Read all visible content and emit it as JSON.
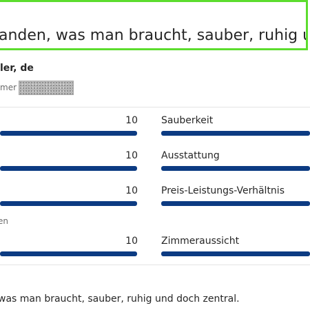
{
  "headline": "anden, was man braucht, sauber, ruhig und d",
  "reviewer": {
    "name": "ler, de",
    "meta": "mer"
  },
  "scores": {
    "left": [
      {
        "value": "10",
        "fraction": 1.0
      },
      {
        "value": "10",
        "fraction": 1.0
      },
      {
        "value": "10",
        "fraction": 1.0
      },
      {
        "value": "10",
        "fraction": 1.0
      }
    ],
    "left_section_label": "en",
    "right": [
      {
        "label": "Sauberkeit"
      },
      {
        "label": "Ausstattung"
      },
      {
        "label": "Preis-Leistungs-Verhältnis"
      },
      {
        "label": "Zimmeraussicht"
      }
    ]
  },
  "review_text": "was man braucht, sauber, ruhig und doch zentral.",
  "colors": {
    "highlight_border": "#5cdd2e",
    "bar": "#0c3b82"
  }
}
